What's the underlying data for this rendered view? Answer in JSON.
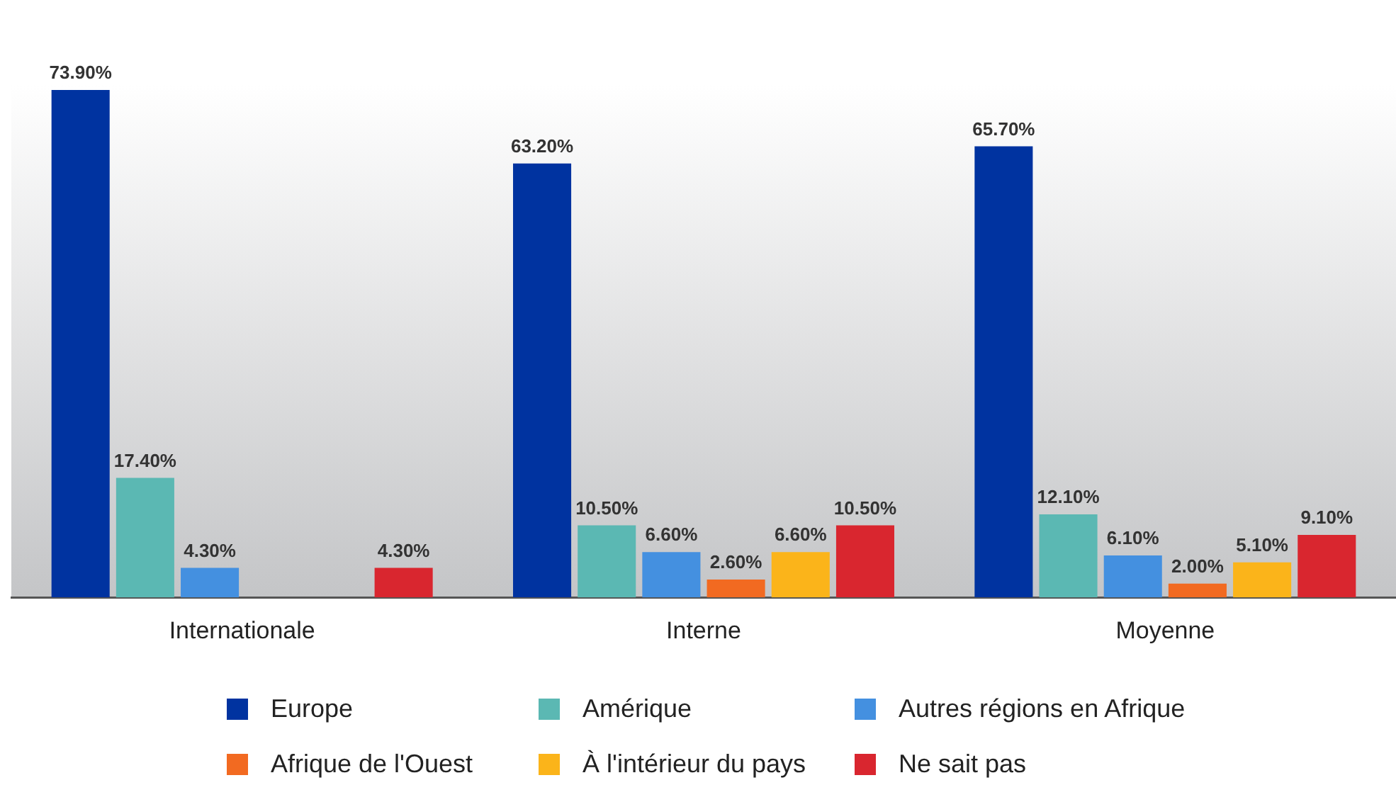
{
  "chart_data": {
    "type": "bar",
    "categories": [
      "Internationale",
      "Interne",
      "Moyenne"
    ],
    "series": [
      {
        "name": "Europe",
        "color": "#0033a0",
        "values": [
          73.9,
          63.2,
          65.7
        ],
        "value_labels": [
          "73.90%",
          "63.20%",
          "65.70%"
        ]
      },
      {
        "name": "Amérique",
        "color": "#5bb8b3",
        "values": [
          17.4,
          10.5,
          12.1
        ],
        "value_labels": [
          "17.40%",
          "10.50%",
          "12.10%"
        ]
      },
      {
        "name": "Autres régions en Afrique",
        "color": "#4490e0",
        "values": [
          4.3,
          6.6,
          6.1
        ],
        "value_labels": [
          "4.30%",
          "6.60%",
          "6.10%"
        ]
      },
      {
        "name": "Afrique de l'Ouest",
        "color": "#f26a21",
        "values": [
          0,
          2.6,
          2.0
        ],
        "value_labels": [
          null,
          "2.60%",
          "2.00%"
        ]
      },
      {
        "name": "À l'intérieur du pays",
        "color": "#fbb41a",
        "values": [
          0,
          6.6,
          5.1
        ],
        "value_labels": [
          null,
          "6.60%",
          "5.10%"
        ]
      },
      {
        "name": "Ne sait pas",
        "color": "#d9262f",
        "values": [
          4.3,
          10.5,
          9.1
        ],
        "value_labels": [
          "4.30%",
          "10.50%",
          "9.10%"
        ]
      }
    ],
    "grid": false,
    "legend": "bottom"
  }
}
